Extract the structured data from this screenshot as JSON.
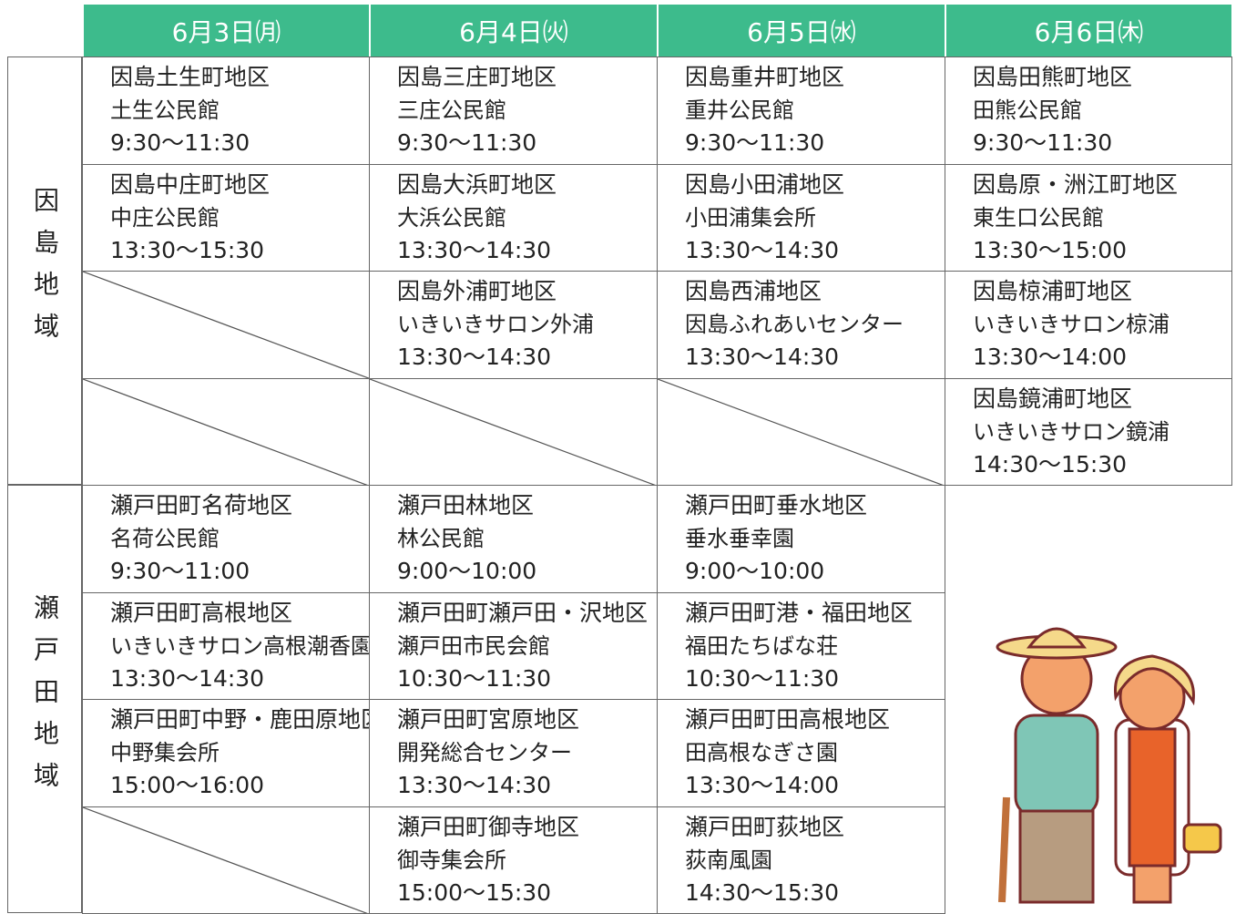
{
  "header": {
    "columns": [
      "6月3日㈪",
      "6月4日㈫",
      "6月5日㈬",
      "6月6日㈭"
    ]
  },
  "regions": [
    {
      "name": "因島地域",
      "rows": [
        [
          {
            "lines": [
              "因島土生町地区",
              "土生公民館",
              "9:30～11:30"
            ]
          },
          {
            "lines": [
              "因島三庄町地区",
              "三庄公民館",
              "9:30～11:30"
            ]
          },
          {
            "lines": [
              "因島重井町地区",
              "重井公民館",
              "9:30～11:30"
            ]
          },
          {
            "lines": [
              "因島田熊町地区",
              "田熊公民館",
              "9:30～11:30"
            ]
          }
        ],
        [
          {
            "lines": [
              "因島中庄町地区",
              "中庄公民館",
              "13:30～15:30"
            ]
          },
          {
            "lines": [
              "因島大浜町地区",
              "大浜公民館",
              "13:30～14:30"
            ]
          },
          {
            "lines": [
              "因島小田浦地区",
              "小田浦集会所",
              "13:30～14:30"
            ]
          },
          {
            "lines": [
              "因島原・洲江町地区",
              "東生口公民館",
              "13:30～15:00"
            ]
          }
        ],
        [
          null,
          {
            "lines": [
              "因島外浦町地区",
              "いきいきサロン外浦",
              "13:30～14:30"
            ]
          },
          {
            "lines": [
              "因島西浦地区",
              "因島ふれあいセンター",
              "13:30～14:30"
            ]
          },
          {
            "lines": [
              "因島椋浦町地区",
              "いきいきサロン椋浦",
              "13:30～14:00"
            ]
          }
        ],
        [
          null,
          null,
          null,
          {
            "lines": [
              "因島鏡浦町地区",
              "いきいきサロン鏡浦",
              "14:30～15:30"
            ]
          }
        ]
      ]
    },
    {
      "name": "瀬戸田地域",
      "rows": [
        [
          {
            "lines": [
              "瀬戸田町名荷地区",
              "名荷公民館",
              "9:30～11:00"
            ]
          },
          {
            "lines": [
              "瀬戸田林地区",
              "林公民館",
              "9:00～10:00"
            ]
          },
          {
            "lines": [
              "瀬戸田町垂水地区",
              "垂水垂幸園",
              "9:00～10:00"
            ]
          }
        ],
        [
          {
            "lines": [
              "瀬戸田町高根地区",
              "いきいきサロン高根潮香園",
              "13:30～14:30"
            ]
          },
          {
            "lines": [
              "瀬戸田町瀬戸田・沢地区",
              "瀬戸田市民会館",
              "10:30～11:30"
            ]
          },
          {
            "lines": [
              "瀬戸田町港・福田地区",
              "福田たちばな荘",
              "10:30～11:30"
            ]
          }
        ],
        [
          {
            "lines": [
              "瀬戸田町中野・鹿田原地区",
              "中野集会所",
              "15:00～16:00"
            ]
          },
          {
            "lines": [
              "瀬戸田町宮原地区",
              "開発総合センター",
              "13:30～14:30"
            ]
          },
          {
            "lines": [
              "瀬戸田町田高根地区",
              "田高根なぎさ園",
              "13:30～14:00"
            ]
          }
        ],
        [
          null,
          {
            "lines": [
              "瀬戸田町御寺地区",
              "御寺集会所",
              "15:00～15:30"
            ]
          },
          {
            "lines": [
              "瀬戸田町荻地区",
              "荻南風園",
              "14:30～15:30"
            ]
          }
        ]
      ]
    }
  ]
}
